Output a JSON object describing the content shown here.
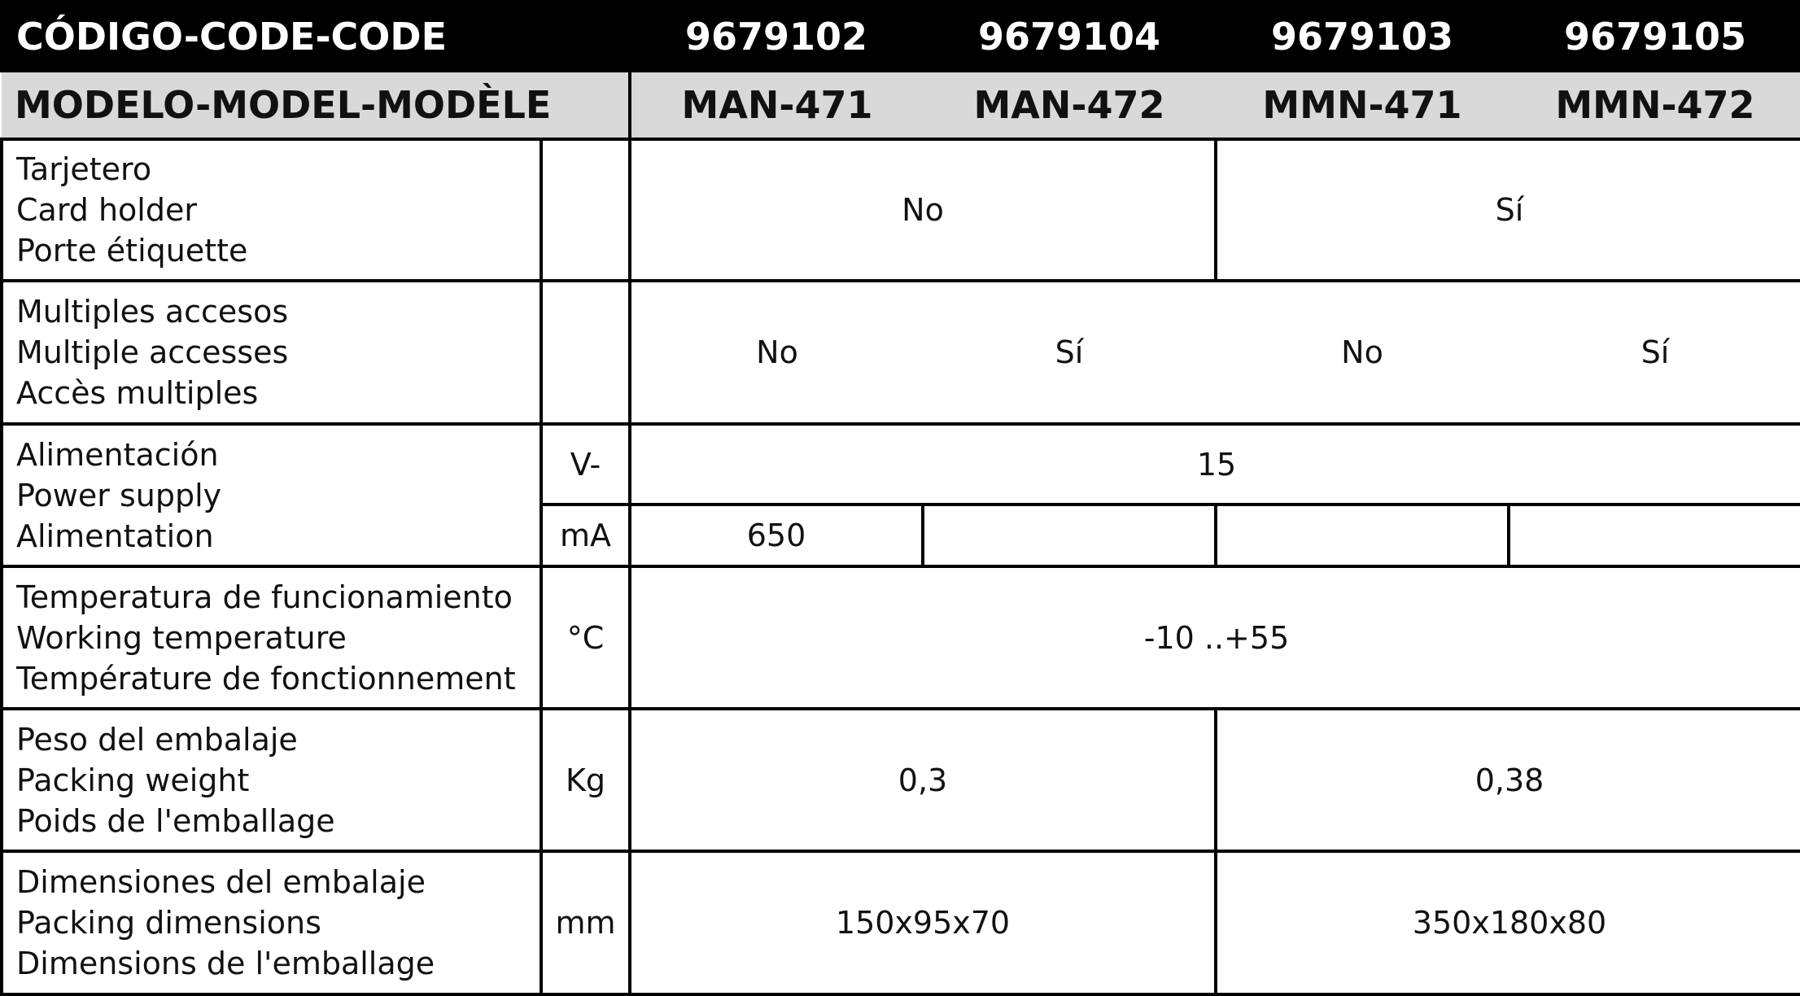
{
  "header": {
    "code_label": "CÓDIGO-CODE-CODE",
    "codes": [
      "9679102",
      "9679104",
      "9679103",
      "9679105"
    ],
    "model_label": "MODELO-MODEL-MODÈLE",
    "models": [
      "MAN-471",
      "MAN-472",
      "MMN-471",
      "MMN-472"
    ]
  },
  "rows": {
    "card_holder": {
      "labels": [
        "Tarjetero",
        "Card holder",
        "Porte étiquette"
      ],
      "unit": "",
      "values": [
        "No",
        "Sí"
      ]
    },
    "multiple_access": {
      "labels": [
        "Multiples accesos",
        "Multiple accesses",
        "Accès multiples"
      ],
      "unit": "",
      "values": [
        "No",
        "Sí",
        "No",
        "Sí"
      ]
    },
    "power": {
      "labels": [
        "Alimentación",
        "Power supply",
        "Alimentation"
      ],
      "unit_v": "V-",
      "value_v": "15",
      "unit_ma": "mA",
      "values_ma": [
        "650",
        "",
        "",
        ""
      ]
    },
    "temperature": {
      "labels": [
        "Temperatura de funcionamiento",
        "Working temperature",
        "Température de fonctionnement"
      ],
      "unit": "°C",
      "value": "-10 ..+55"
    },
    "weight": {
      "labels": [
        "Peso del embalaje",
        "Packing weight",
        "Poids de l'emballage"
      ],
      "unit": "Kg",
      "values": [
        "0,3",
        "0,38"
      ]
    },
    "dimensions": {
      "labels": [
        "Dimensiones del embalaje",
        "Packing dimensions",
        "Dimensions de l'emballage"
      ],
      "unit": "mm",
      "values": [
        "150x95x70",
        "350x180x80"
      ]
    }
  }
}
